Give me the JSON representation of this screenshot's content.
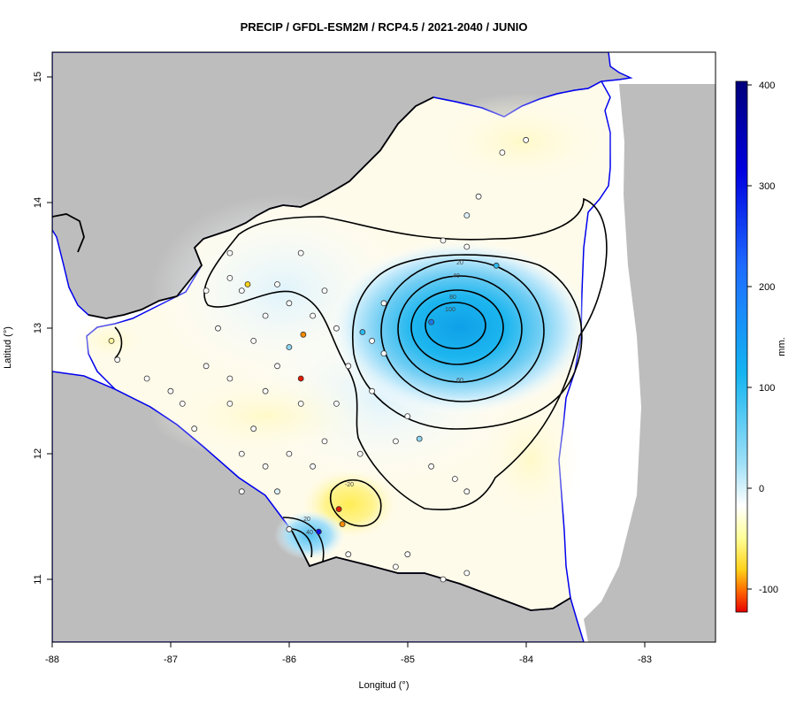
{
  "title": "PRECIP / GFDL-ESM2M / RCP4.5 / 2021-2040 / JUNIO",
  "x_axis": {
    "label": "Longitud (°)",
    "ticks": [
      "-88",
      "-87",
      "-86",
      "-85",
      "-84",
      "-83"
    ]
  },
  "y_axis": {
    "label": "Latitud (°)",
    "ticks": [
      "11",
      "12",
      "13",
      "14",
      "15"
    ]
  },
  "legend": {
    "unit": "mm.",
    "ticks": [
      "400",
      "300",
      "200",
      "100",
      "0",
      "-100"
    ]
  },
  "contour_labels": [
    "20",
    "40",
    "60",
    "80",
    "100",
    "-20",
    "20",
    "40"
  ],
  "colors": {
    "land_outside": "#bdbdbd",
    "sea": "#ffffff",
    "coastline": "#0000ee",
    "border": "#000000",
    "contour": "#000000",
    "scale": [
      "#00007a",
      "#0000e0",
      "#1e6cff",
      "#14b4f0",
      "#7fd3f5",
      "#ffffff",
      "#ffff99",
      "#ffd21a",
      "#ff6a00",
      "#e60000"
    ]
  },
  "chart_data": {
    "type": "heatmap",
    "title": "PRECIP / GFDL-ESM2M / RCP4.5 / 2021-2040 / JUNIO",
    "xlabel": "Longitud (°)",
    "ylabel": "Latitud (°)",
    "xlim": [
      -88,
      -82.4
    ],
    "ylim": [
      10.5,
      15.2
    ],
    "colorbar": {
      "label": "mm.",
      "range": [
        -120,
        405
      ],
      "ticks": [
        -100,
        0,
        100,
        200,
        300,
        400
      ]
    },
    "contour_levels": [
      -20,
      20,
      40,
      60,
      80,
      100
    ],
    "features": [
      {
        "name": "positive maximum",
        "lon": -84.6,
        "lat": 13.0,
        "value": 110
      },
      {
        "name": "negative minimum",
        "lon": -85.5,
        "lat": 11.6,
        "value": -30
      },
      {
        "name": "positive south",
        "lon": -85.9,
        "lat": 11.35,
        "value": 40
      }
    ],
    "stations": [
      {
        "lon": -84.8,
        "lat": 13.05,
        "v": 140
      },
      {
        "lon": -85.9,
        "lat": 12.6,
        "v": -110
      },
      {
        "lon": -85.58,
        "lat": 11.56,
        "v": -100
      },
      {
        "lon": -85.55,
        "lat": 11.44,
        "v": -80
      },
      {
        "lon": -85.88,
        "lat": 12.95,
        "v": -70
      },
      {
        "lon": -85.75,
        "lat": 11.38,
        "v": 250
      },
      {
        "lon": -84.25,
        "lat": 13.5,
        "v": 80
      },
      {
        "lon": -85.38,
        "lat": 12.97,
        "v": 70
      },
      {
        "lon": -86.35,
        "lat": 13.35,
        "v": -40
      },
      {
        "lon": -84.9,
        "lat": 12.12,
        "v": 40
      },
      {
        "lon": -86.0,
        "lat": 12.85,
        "v": 60
      },
      {
        "lon": -86.5,
        "lat": 12.4,
        "v": 10
      },
      {
        "lon": -86.3,
        "lat": 12.2,
        "v": 5
      },
      {
        "lon": -86.1,
        "lat": 11.7,
        "v": 15
      },
      {
        "lon": -87.5,
        "lat": 12.9,
        "v": -15
      },
      {
        "lon": -85.2,
        "lat": 13.2,
        "v": 5
      },
      {
        "lon": -84.5,
        "lat": 13.9,
        "v": 20
      },
      {
        "lon": -84.0,
        "lat": 14.5,
        "v": 0
      },
      {
        "lon": -85.0,
        "lat": 11.2,
        "v": 0
      },
      {
        "lon": -84.7,
        "lat": 11.0,
        "v": 0
      }
    ]
  }
}
